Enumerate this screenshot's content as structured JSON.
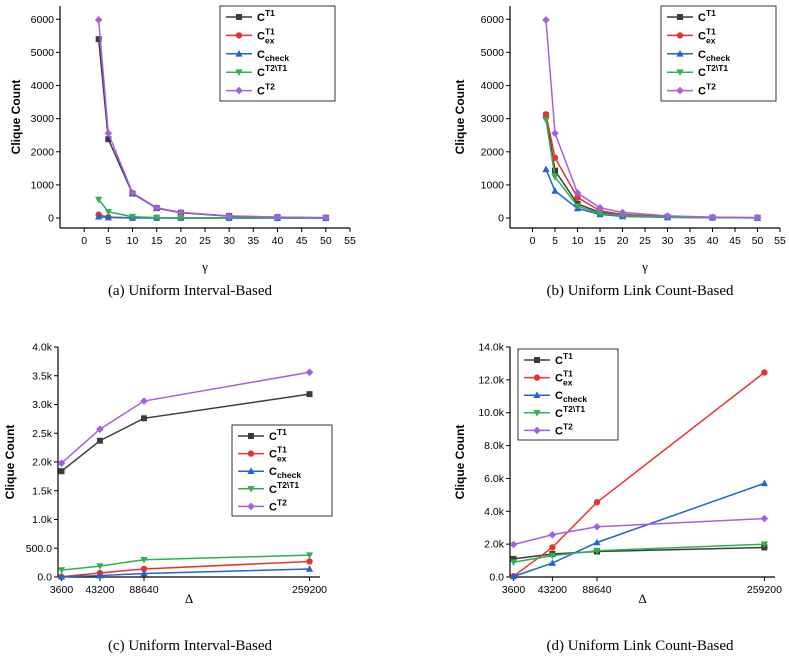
{
  "legend_labels": [
    {
      "main": "C",
      "sup": "T1",
      "sub": ""
    },
    {
      "main": "C",
      "sup": "T1",
      "sub": "ex"
    },
    {
      "main": "C",
      "sup": "",
      "sub": "check"
    },
    {
      "main": "C",
      "sup": "T2\\T1",
      "sub": ""
    },
    {
      "main": "C",
      "sup": "T2",
      "sub": ""
    }
  ],
  "series_colors": [
    "#3c3c3c",
    "#e8322f",
    "#1f63d6",
    "#30b050",
    "#a45ee6"
  ],
  "series_markers": [
    "square",
    "circle",
    "triangle-up",
    "triangle-down",
    "diamond"
  ],
  "chart_data": [
    {
      "type": "line",
      "caption": "(a) Uniform Interval-Based",
      "xlabel": "γ",
      "ylabel": "Clique Count",
      "x": [
        3,
        5,
        10,
        15,
        20,
        30,
        40,
        50
      ],
      "xlim": [
        -5,
        55
      ],
      "xticks": [
        0,
        5,
        10,
        15,
        20,
        25,
        30,
        35,
        40,
        45,
        50,
        55
      ],
      "xtick_labels": [
        "0",
        "5",
        "10",
        "15",
        "20",
        "25",
        "30",
        "35",
        "40",
        "45",
        "50",
        "55"
      ],
      "ylim": [
        -300,
        6400
      ],
      "yticks": [
        0,
        1000,
        2000,
        3000,
        4000,
        5000,
        6000
      ],
      "ytick_labels": [
        "0",
        "1000",
        "2000",
        "3000",
        "4000",
        "5000",
        "6000"
      ],
      "legend_position": "top-right",
      "series": [
        {
          "values": [
            5400,
            2380,
            740,
            300,
            160,
            60,
            25,
            10
          ]
        },
        {
          "values": [
            100,
            30,
            10,
            5,
            3,
            2,
            1,
            1
          ]
        },
        {
          "values": [
            40,
            15,
            5,
            3,
            2,
            1,
            1,
            1
          ]
        },
        {
          "values": [
            560,
            190,
            40,
            15,
            8,
            4,
            2,
            1
          ]
        },
        {
          "values": [
            5980,
            2560,
            760,
            310,
            170,
            65,
            28,
            12
          ]
        }
      ]
    },
    {
      "type": "line",
      "caption": "(b) Uniform Link Count-Based",
      "xlabel": "γ",
      "ylabel": "Clique Count",
      "x": [
        3,
        5,
        10,
        15,
        20,
        30,
        40,
        50
      ],
      "xlim": [
        -5,
        55
      ],
      "xticks": [
        0,
        5,
        10,
        15,
        20,
        25,
        30,
        35,
        40,
        45,
        50,
        55
      ],
      "xtick_labels": [
        "0",
        "5",
        "10",
        "15",
        "20",
        "25",
        "30",
        "35",
        "40",
        "45",
        "50",
        "55"
      ],
      "ylim": [
        -300,
        6400
      ],
      "yticks": [
        0,
        1000,
        2000,
        3000,
        4000,
        5000,
        6000
      ],
      "ytick_labels": [
        "0",
        "1000",
        "2000",
        "3000",
        "4000",
        "5000",
        "6000"
      ],
      "legend_position": "top-right",
      "series": [
        {
          "values": [
            3100,
            1430,
            430,
            170,
            80,
            30,
            15,
            8
          ]
        },
        {
          "values": [
            3130,
            1820,
            620,
            220,
            110,
            40,
            18,
            9
          ]
        },
        {
          "values": [
            1470,
            820,
            290,
            110,
            50,
            20,
            10,
            5
          ]
        },
        {
          "values": [
            2960,
            1240,
            360,
            140,
            70,
            25,
            12,
            6
          ]
        },
        {
          "values": [
            5980,
            2560,
            760,
            310,
            170,
            65,
            28,
            12
          ]
        }
      ]
    },
    {
      "type": "line",
      "caption": "(c) Uniform Interval-Based",
      "xlabel": "Δ",
      "ylabel": "Clique Count",
      "x": [
        3600,
        43200,
        88640,
        259200
      ],
      "xlim": [
        0,
        270000
      ],
      "xticks": [
        3600,
        43200,
        88640,
        259200
      ],
      "xtick_labels": [
        "3600",
        "43200",
        "88640",
        "259200"
      ],
      "ylim": [
        0,
        4000
      ],
      "yticks": [
        0,
        500,
        1000,
        1500,
        2000,
        2500,
        3000,
        3500,
        4000
      ],
      "ytick_labels": [
        "0.0",
        "500.0",
        "1.0k",
        "1.5k",
        "2.0k",
        "2.5k",
        "3.0k",
        "3.5k",
        "4.0k"
      ],
      "legend_position": "right",
      "series": [
        {
          "values": [
            1840,
            2370,
            2760,
            3180
          ]
        },
        {
          "values": [
            5,
            70,
            140,
            270
          ]
        },
        {
          "values": [
            2,
            25,
            60,
            140
          ]
        },
        {
          "values": [
            120,
            190,
            300,
            380
          ]
        },
        {
          "values": [
            1980,
            2570,
            3060,
            3560
          ]
        }
      ]
    },
    {
      "type": "line",
      "caption": "(d) Uniform Link Count-Based",
      "xlabel": "Δ",
      "ylabel": "Clique Count",
      "x": [
        3600,
        43200,
        88640,
        259200
      ],
      "xlim": [
        0,
        270000
      ],
      "xticks": [
        3600,
        43200,
        88640,
        259200
      ],
      "xtick_labels": [
        "3600",
        "43200",
        "88640",
        "259200"
      ],
      "ylim": [
        0,
        14000
      ],
      "yticks": [
        0,
        2000,
        4000,
        6000,
        8000,
        10000,
        12000,
        14000
      ],
      "ytick_labels": [
        "0.0",
        "2.0k",
        "4.0k",
        "6.0k",
        "8.0k",
        "10.0k",
        "12.0k",
        "14.0k"
      ],
      "legend_position": "top-left",
      "series": [
        {
          "values": [
            1100,
            1400,
            1550,
            1800
          ]
        },
        {
          "values": [
            50,
            1800,
            4550,
            12450
          ]
        },
        {
          "values": [
            30,
            850,
            2100,
            5700
          ]
        },
        {
          "values": [
            900,
            1300,
            1600,
            2000
          ]
        },
        {
          "values": [
            1980,
            2570,
            3060,
            3560
          ]
        }
      ]
    }
  ]
}
